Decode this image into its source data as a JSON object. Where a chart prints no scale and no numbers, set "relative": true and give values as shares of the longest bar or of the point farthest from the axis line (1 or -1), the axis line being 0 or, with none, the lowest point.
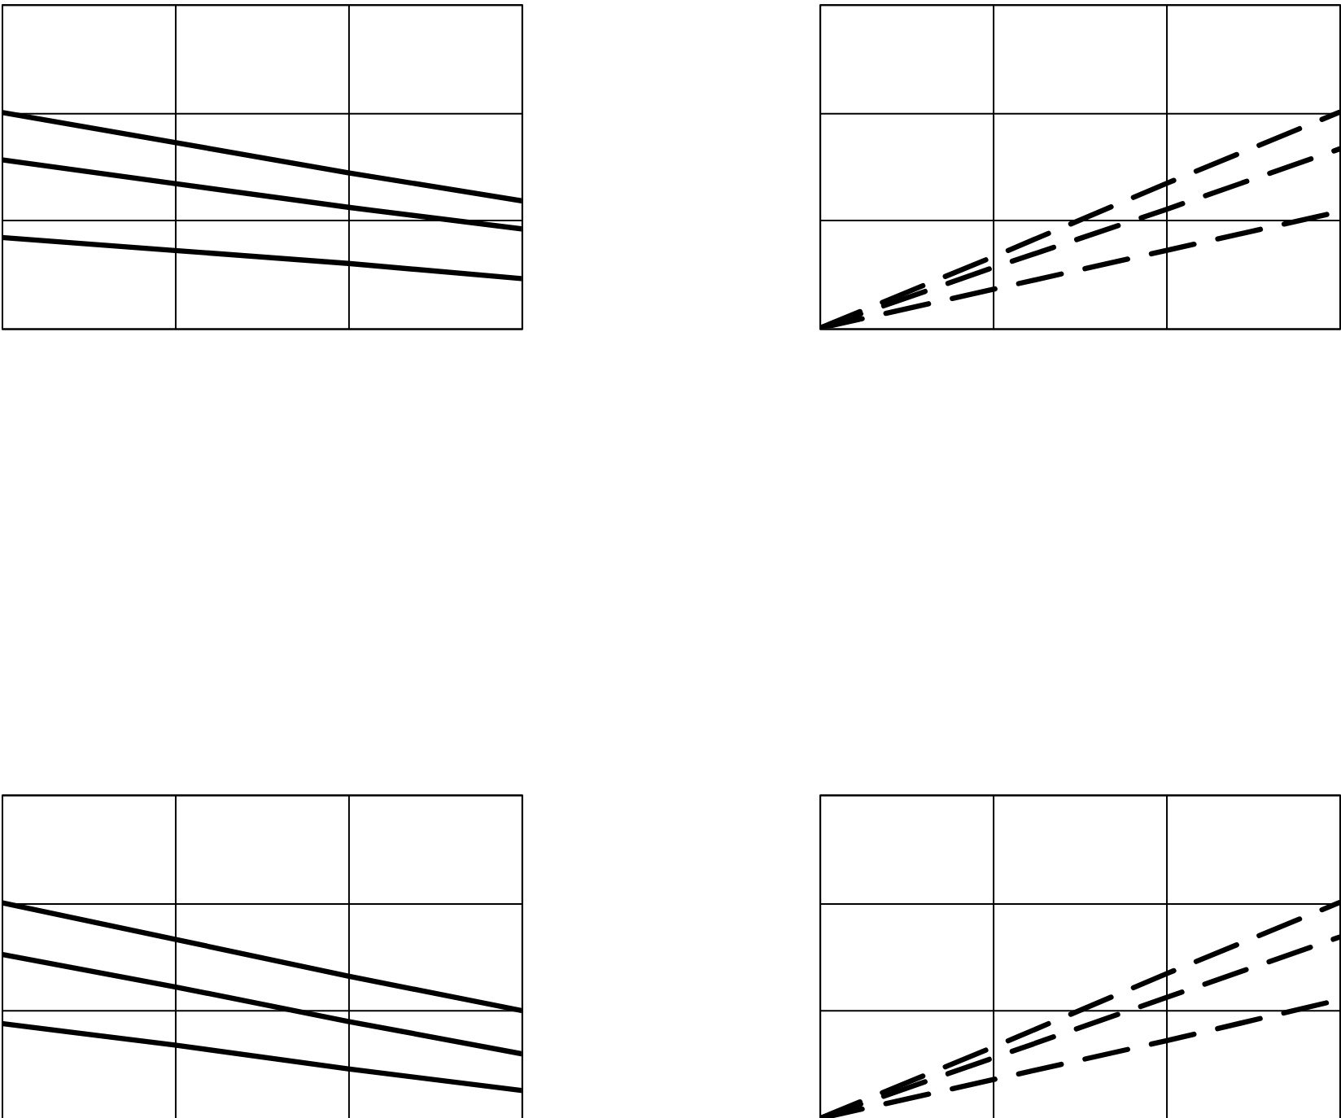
{
  "chart_data": [
    {
      "type": "line",
      "relative": true,
      "categories": [
        null,
        null,
        null,
        null
      ],
      "grid": true,
      "tick_labels": false,
      "line_style": "solid",
      "series": [
        {
          "color": "#000000",
          "values": [
            1.0,
            0.86,
            0.72,
            0.59
          ]
        },
        {
          "color": "#000000",
          "values": [
            0.78,
            0.67,
            0.56,
            0.46
          ]
        },
        {
          "color": "#000000",
          "values": [
            0.42,
            0.36,
            0.3,
            0.23
          ]
        }
      ]
    },
    {
      "type": "line",
      "relative": true,
      "categories": [
        null,
        null,
        null,
        null
      ],
      "grid": true,
      "tick_labels": false,
      "line_style": "dashed",
      "series": [
        {
          "color": "#000000",
          "values": [
            0,
            0.33,
            0.67,
            1.0
          ]
        },
        {
          "color": "#000000",
          "values": [
            0,
            0.28,
            0.55,
            0.83
          ]
        },
        {
          "color": "#000000",
          "values": [
            0,
            0.18,
            0.36,
            0.54
          ]
        }
      ]
    },
    {
      "type": "line",
      "relative": true,
      "categories": [
        null,
        null,
        null,
        null
      ],
      "grid": true,
      "tick_labels": false,
      "line_style": "solid",
      "series": [
        {
          "color": "#000000",
          "values": [
            1.0,
            0.83,
            0.66,
            0.5
          ]
        },
        {
          "color": "#000000",
          "values": [
            0.76,
            0.61,
            0.45,
            0.3
          ]
        },
        {
          "color": "#000000",
          "values": [
            0.44,
            0.34,
            0.23,
            0.13
          ]
        }
      ]
    },
    {
      "type": "line",
      "relative": true,
      "categories": [
        null,
        null,
        null,
        null
      ],
      "grid": true,
      "tick_labels": false,
      "line_style": "dashed",
      "series": [
        {
          "color": "#000000",
          "values": [
            0,
            0.33,
            0.67,
            1.0
          ]
        },
        {
          "color": "#000000",
          "values": [
            0,
            0.28,
            0.56,
            0.84
          ]
        },
        {
          "color": "#000000",
          "values": [
            0,
            0.18,
            0.36,
            0.55
          ]
        }
      ]
    }
  ]
}
